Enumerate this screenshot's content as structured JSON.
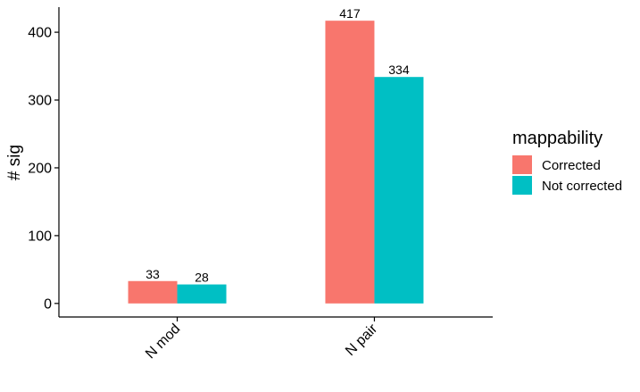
{
  "chart_data": {
    "type": "bar",
    "categories": [
      "N mod",
      "N pair"
    ],
    "series": [
      {
        "name": "Corrected",
        "values": [
          33,
          417
        ],
        "color": "#F8766D"
      },
      {
        "name": "Not corrected",
        "values": [
          28,
          334
        ],
        "color": "#00BFC4"
      }
    ],
    "xlabel": "",
    "ylabel": "# sig",
    "yticks": [
      0,
      100,
      200,
      300,
      400
    ],
    "ylim": [
      -20,
      437
    ],
    "grid": false,
    "legend": {
      "title": "mappability",
      "position": "right"
    },
    "x_tick_rotation": 45,
    "data_labels": true
  }
}
